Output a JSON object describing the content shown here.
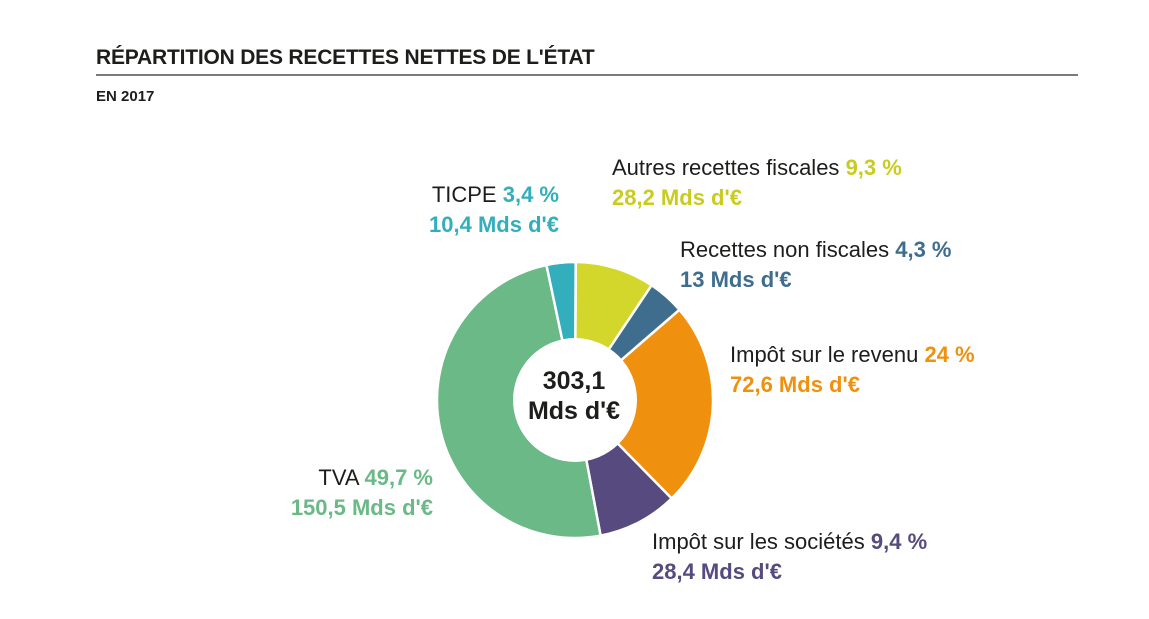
{
  "header": {
    "title": "RÉPARTITION DES RECETTES NETTES DE L'ÉTAT",
    "subtitle": "EN 2017"
  },
  "center": {
    "line1": "303,1",
    "line2": "Mds d'€"
  },
  "chart_data": {
    "type": "pie",
    "donut": true,
    "title": "RÉPARTITION DES RECETTES NETTES DE L'ÉTAT",
    "subtitle": "EN 2017",
    "total": "303,1 Mds d'€",
    "slices": [
      {
        "label": "Autres recettes fiscales",
        "value": 9.3,
        "pct_label": "9,3 %",
        "amount_label": "28,2 Mds d'€",
        "color": "#d4d72b"
      },
      {
        "label": "Recettes non fiscales",
        "value": 4.3,
        "pct_label": "4,3 %",
        "amount_label": "13 Mds d'€",
        "color": "#3e6d8e"
      },
      {
        "label": "Impôt sur le revenu",
        "value": 24,
        "pct_label": "24 %",
        "amount_label": "72,6 Mds d'€",
        "color": "#f0900f"
      },
      {
        "label": "Impôt sur les sociétés",
        "value": 9.4,
        "pct_label": "9,4 %",
        "amount_label": "28,4 Mds d'€",
        "color": "#574a7e"
      },
      {
        "label": "TVA",
        "value": 49.7,
        "pct_label": "49,7 %",
        "amount_label": "150,5 Mds d'€",
        "color": "#6ab986"
      },
      {
        "label": "TICPE",
        "value": 3.4,
        "pct_label": "3,4 %",
        "amount_label": "10,4 Mds d'€",
        "color": "#33aebd"
      }
    ]
  }
}
